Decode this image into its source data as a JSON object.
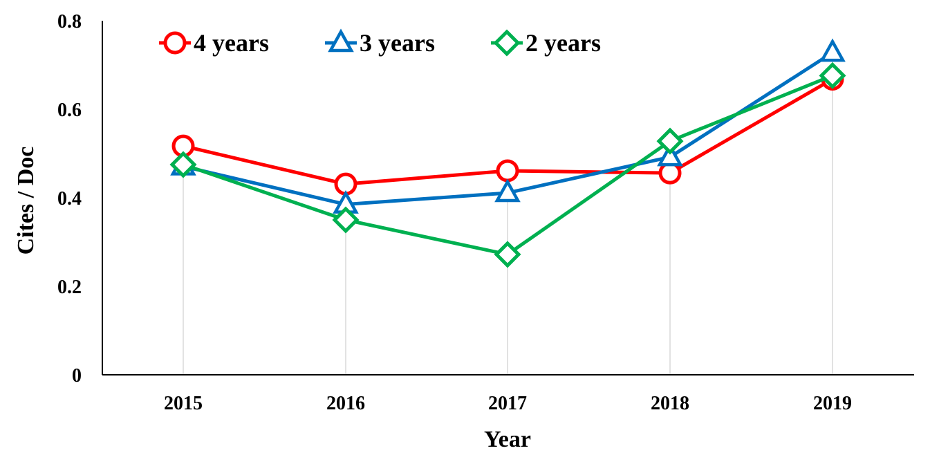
{
  "chart_data": {
    "type": "line",
    "title": "",
    "xlabel": "Year",
    "ylabel": "Cites / Doc",
    "categories": [
      "2015",
      "2016",
      "2017",
      "2018",
      "2019"
    ],
    "ylim": [
      0,
      0.8
    ],
    "yticks": [
      "0",
      "0.2",
      "0.4",
      "0.6",
      "0.8"
    ],
    "grid": "vertical drop lines at each year",
    "legend_position": "top-left",
    "series": [
      {
        "name": "4 years",
        "marker": "circle",
        "color": "#ff0000",
        "values": [
          0.517,
          0.431,
          0.461,
          0.456,
          0.668
        ]
      },
      {
        "name": "3 years",
        "marker": "triangle",
        "color": "#0070c0",
        "values": [
          0.471,
          0.385,
          0.411,
          0.492,
          0.728
        ]
      },
      {
        "name": "2 years",
        "marker": "diamond",
        "color": "#00b050",
        "values": [
          0.475,
          0.35,
          0.272,
          0.528,
          0.676
        ]
      }
    ]
  }
}
